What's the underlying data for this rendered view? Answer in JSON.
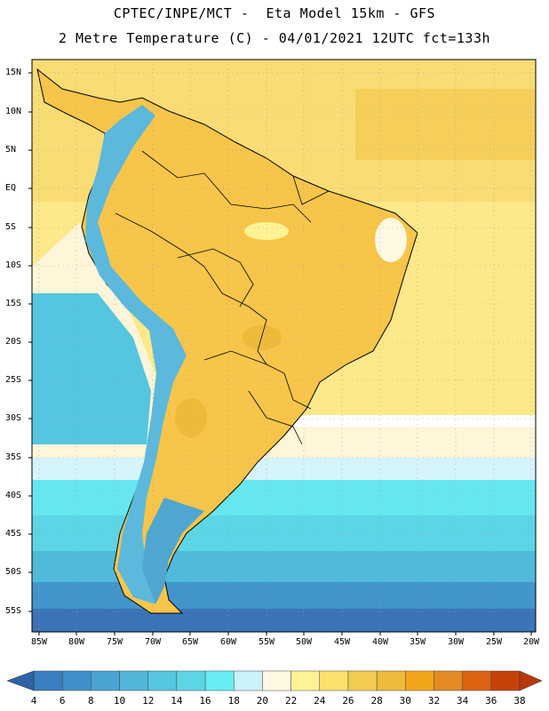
{
  "header": {
    "line1": "CPTEC/INPE/MCT -  Eta Model 15km - GFS",
    "line2": "2 Metre Temperature (C) - 04/01/2021 12UTC fct=133h"
  },
  "map": {
    "region": "South America",
    "lat_labels": [
      "15N",
      "10N",
      "5N",
      "EQ",
      "5S",
      "10S",
      "15S",
      "20S",
      "25S",
      "30S",
      "35S",
      "40S",
      "45S",
      "50S",
      "55S"
    ],
    "lon_labels": [
      "85W",
      "80W",
      "75W",
      "70W",
      "65W",
      "60W",
      "55W",
      "50W",
      "45W",
      "40W",
      "35W",
      "30W",
      "25W",
      "20W"
    ],
    "ocean_color": "#fde98a",
    "land_color": "#f7c54a"
  },
  "colorbar": {
    "ticks": [
      "4",
      "6",
      "8",
      "10",
      "12",
      "14",
      "16",
      "18",
      "20",
      "22",
      "24",
      "26",
      "28",
      "30",
      "32",
      "34",
      "36",
      "38"
    ],
    "colors": [
      "#3a7fbe",
      "#3f8fc8",
      "#4aa3d2",
      "#50b6d9",
      "#55c6e0",
      "#5cd6e6",
      "#66ecf2",
      "#caf2fb",
      "#fff8e3",
      "#fdf396",
      "#fbe06e",
      "#f4cb52",
      "#efb93a",
      "#f1a519",
      "#e48924",
      "#dc6412",
      "#c6420a"
    ],
    "low_extend_color": "#2f63a4",
    "high_extend_color": "#b73a0a"
  }
}
